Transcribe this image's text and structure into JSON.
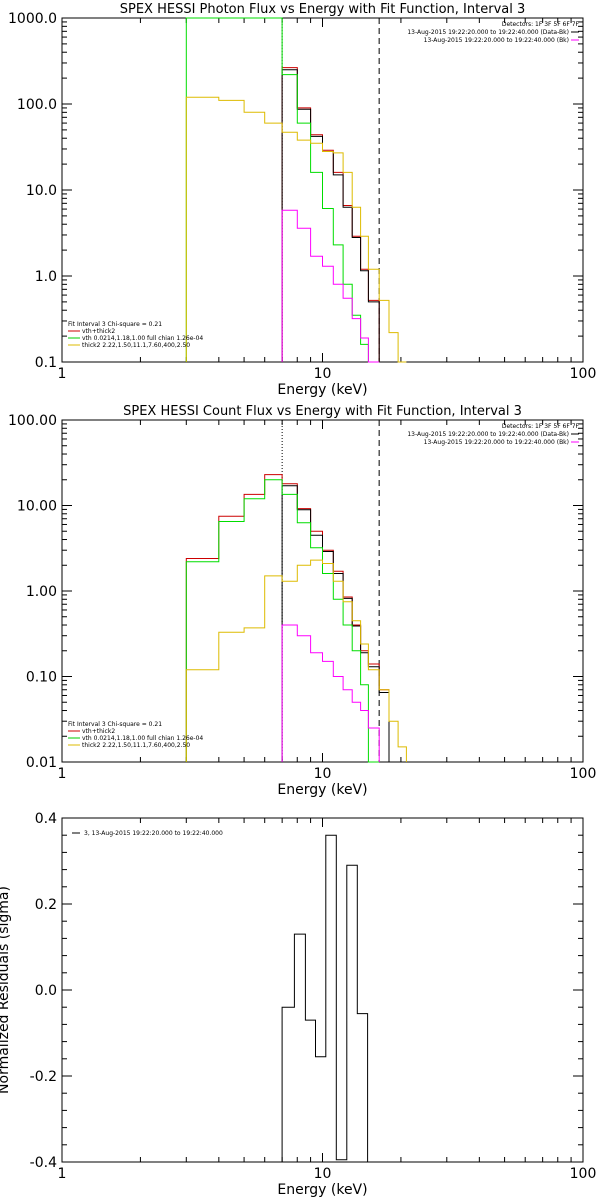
{
  "colors": {
    "data": "#000000",
    "data_bk": "#cc0000",
    "fit_total": "#00dd00",
    "vth": "#00cc00",
    "bk": "#ff00ff",
    "thick2": "#ddbb00",
    "axes": "#000000",
    "bg": "#ffffff"
  },
  "chart_data": [
    {
      "type": "line",
      "title": "SPEX HESSI Photon Flux vs Energy with Fit Function, Interval 3",
      "xlabel": "Energy (keV)",
      "ylabel": "",
      "xscale": "log",
      "yscale": "log",
      "xlim": [
        1,
        100
      ],
      "ylim": [
        0.1,
        1000
      ],
      "x_ticks": [
        "1",
        "10",
        "100"
      ],
      "y_ticks": [
        "0.1",
        "1.0",
        "10.0",
        "100.0",
        "1000.0"
      ],
      "vlines": [
        {
          "x": 7.0,
          "style": "dotted"
        },
        {
          "x": 16.5,
          "style": "dashed"
        }
      ],
      "legend_top": [
        {
          "text": "Detectors: 1F 3F 5F 6F 7F",
          "color": "#000000"
        },
        {
          "text": "13-Aug-2015 19:22:20.000 to 19:22:40.000 (Data-Bk)",
          "color": "#000000"
        },
        {
          "text": "13-Aug-2015 19:22:20.000 to 19:22:40.000 (Bk)",
          "color": "#ff00ff"
        }
      ],
      "legend_bottom": [
        {
          "text": "Fit Interval 3   Chi-square = 0.21",
          "color": "#000000"
        },
        {
          "text": "vth+thick2",
          "color": "#cc0000"
        },
        {
          "text": "vth 0.0214,1.18,1.00  full chian 1.26e-04",
          "color": "#00cc00"
        },
        {
          "text": "thick2 2.22,1.50,11.1,7.60,400,2.50",
          "color": "#ddbb00"
        }
      ],
      "series": [
        {
          "edges": [
            7.0,
            8.0,
            9.0,
            10.0,
            11.0,
            12.0,
            13.0,
            14.0,
            15.0,
            16.5,
            18.0
          ],
          "values": [
            265,
            90,
            44,
            29,
            16,
            6.6,
            2.9,
            1.2,
            0.52,
            null
          ],
          "color": "#cc0000"
        },
        {
          "edges": [
            7.0,
            8.0,
            9.0,
            10.0,
            11.0,
            12.0,
            13.0,
            14.0,
            15.0,
            16.5,
            18.0
          ],
          "values": [
            250,
            87,
            42,
            28,
            15,
            6.3,
            2.8,
            1.15,
            0.5,
            null
          ],
          "color": "#000000"
        },
        {
          "edges": [
            3.0,
            4.0,
            5.0,
            6.0,
            7.0,
            8.0,
            9.0,
            10.0,
            11.0,
            12.0,
            13.0,
            14.0,
            15.0,
            16.5
          ],
          "values": [
            1000,
            1000,
            1000,
            1000,
            220,
            60,
            16,
            6.1,
            2.3,
            0.8,
            0.35,
            0.16,
            0.1
          ],
          "color": "#00dd00"
        },
        {
          "edges": [
            7.0,
            8.0,
            9.0,
            10.0,
            11.0,
            12.0,
            13.0,
            14.0,
            15.0,
            16.5
          ],
          "values": [
            5.8,
            3.6,
            1.7,
            1.3,
            0.8,
            0.55,
            0.32,
            0.19,
            0.1
          ],
          "color": "#ff00ff"
        },
        {
          "edges": [
            3.0,
            4.0,
            5.0,
            6.0,
            7.0,
            8.0,
            9.0,
            10.0,
            11.0,
            12.0,
            13.0,
            14.0,
            15.0,
            16.5,
            18.0,
            19.5,
            21.0
          ],
          "values": [
            120,
            110,
            80,
            60,
            47,
            38,
            35,
            28,
            27,
            16,
            6.3,
            2.9,
            1.2,
            0.52,
            0.22,
            0.1
          ],
          "color": "#ddbb00"
        }
      ]
    },
    {
      "type": "line",
      "title": "SPEX HESSI Count Flux vs Energy with Fit Function, Interval 3",
      "xlabel": "Energy (keV)",
      "ylabel": "",
      "xscale": "log",
      "yscale": "log",
      "xlim": [
        1,
        100
      ],
      "ylim": [
        0.01,
        100
      ],
      "x_ticks": [
        "1",
        "10",
        "100"
      ],
      "y_ticks": [
        "0.01",
        "0.10",
        "1.00",
        "10.00",
        "100.00"
      ],
      "vlines": [
        {
          "x": 7.0,
          "style": "dotted"
        },
        {
          "x": 16.5,
          "style": "dashed"
        }
      ],
      "legend_top": [
        {
          "text": "Detectors: 1F 3F 5F 6F 7F",
          "color": "#000000"
        },
        {
          "text": "13-Aug-2015 19:22:20.000 to 19:22:40.000 (Data-Bk)",
          "color": "#000000"
        },
        {
          "text": "13-Aug-2015 19:22:20.000 to 19:22:40.000 (Bk)",
          "color": "#ff00ff"
        }
      ],
      "legend_bottom": [
        {
          "text": "Fit Interval 3   Chi-square = 0.21",
          "color": "#000000"
        },
        {
          "text": "vth+thick2",
          "color": "#cc0000"
        },
        {
          "text": "vth 0.0214,1.18,1.00  full chian 1.26e-04",
          "color": "#00cc00"
        },
        {
          "text": "thick2 2.22,1.50,11.1,7.60,400,2.50",
          "color": "#ddbb00"
        }
      ],
      "series": [
        {
          "edges": [
            3.0,
            4.0,
            5.0,
            6.0,
            7.0,
            8.0,
            9.0,
            10.0,
            11.0,
            12.0,
            13.0,
            14.0,
            15.0,
            16.5,
            18.0
          ],
          "values": [
            2.4,
            7.5,
            13.5,
            23,
            18,
            9.2,
            5,
            3,
            1.7,
            0.85,
            0.4,
            0.2,
            0.14,
            0.07
          ],
          "color": "#cc0000"
        },
        {
          "edges": [
            7.0,
            8.0,
            9.0,
            10.0,
            11.0,
            12.0,
            13.0,
            14.0,
            15.0,
            16.5,
            18.0
          ],
          "values": [
            17,
            8.9,
            4.5,
            2.9,
            1.6,
            0.82,
            0.39,
            0.19,
            0.13,
            0.065
          ],
          "color": "#000000"
        },
        {
          "edges": [
            3.0,
            4.0,
            5.0,
            6.0,
            7.0,
            8.0,
            9.0,
            10.0,
            11.0,
            12.0,
            13.0,
            14.0,
            15.0,
            16.5
          ],
          "values": [
            2.2,
            6.5,
            12,
            20,
            13.5,
            6.3,
            3.2,
            1.6,
            0.8,
            0.4,
            0.2,
            0.08,
            0.01
          ],
          "color": "#00dd00"
        },
        {
          "edges": [
            7.0,
            8.0,
            9.0,
            10.0,
            11.0,
            12.0,
            13.0,
            14.0,
            15.0,
            16.5
          ],
          "values": [
            0.4,
            0.3,
            0.19,
            0.15,
            0.1,
            0.07,
            0.05,
            0.04,
            0.025
          ],
          "color": "#ff00ff"
        },
        {
          "edges": [
            3.0,
            4.0,
            5.0,
            6.0,
            7.0,
            8.0,
            9.0,
            10.0,
            11.0,
            12.0,
            13.0,
            14.0,
            15.0,
            16.5,
            18.0,
            19.5,
            21.0
          ],
          "values": [
            0.12,
            0.33,
            0.37,
            1.5,
            1.3,
            2.0,
            2.3,
            2.1,
            1.3,
            0.75,
            0.45,
            0.24,
            0.12,
            0.07,
            0.03,
            0.015
          ],
          "color": "#ddbb00"
        }
      ]
    },
    {
      "type": "line",
      "title": "",
      "xlabel": "Energy (keV)",
      "ylabel": "Normalized Residuals (sigma)",
      "xscale": "log",
      "yscale": "linear",
      "xlim": [
        1,
        100
      ],
      "ylim": [
        -0.4,
        0.4
      ],
      "x_ticks": [
        "1",
        "10",
        "100"
      ],
      "y_ticks": [
        "-0.4",
        "-0.2",
        "0.0",
        "0.2",
        "0.4"
      ],
      "legend_top": [
        {
          "text": "3, 13-Aug-2015 19:22:20.000 to 19:22:40.000",
          "color": "#000000"
        }
      ],
      "series": [
        {
          "edges": [
            7.0,
            7.8,
            8.6,
            9.4,
            10.3,
            11.3,
            12.4,
            13.6,
            14.9,
            16.3
          ],
          "values": [
            -0.04,
            0.13,
            -0.07,
            -0.155,
            0.36,
            -0.395,
            0.29,
            -0.055,
            null
          ],
          "color": "#000000"
        }
      ]
    }
  ]
}
